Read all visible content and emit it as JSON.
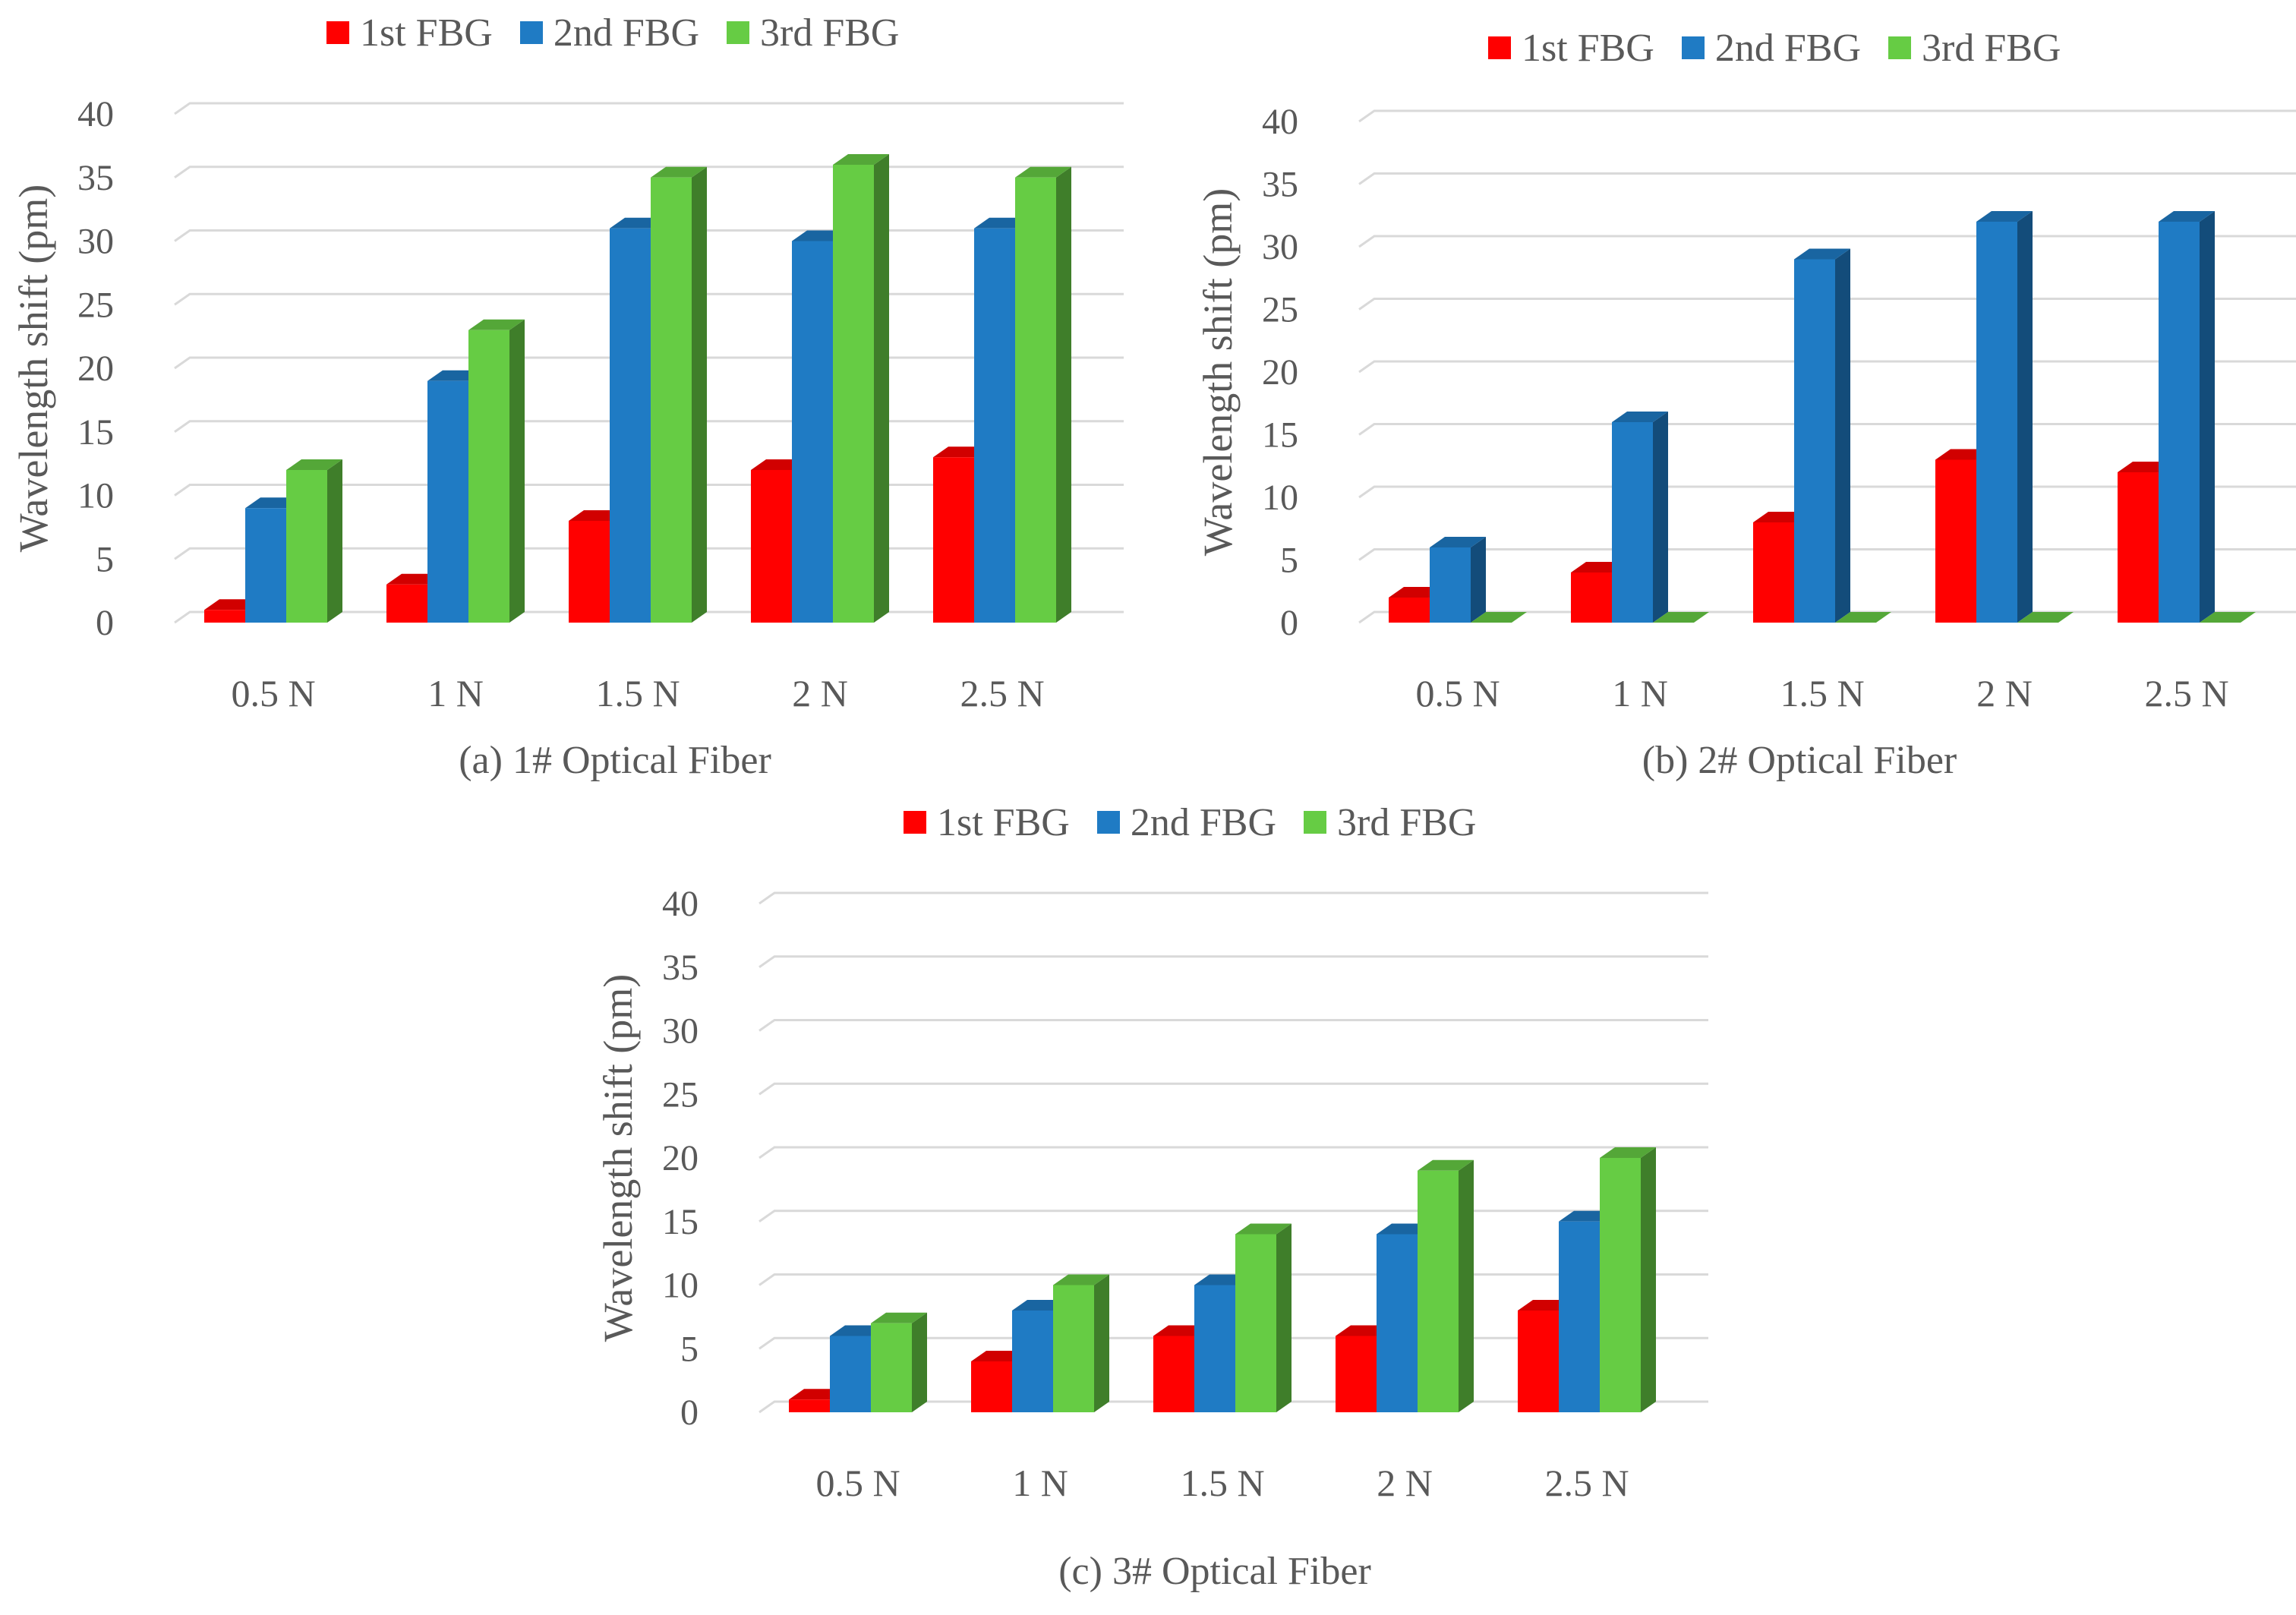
{
  "chart_data": [
    {
      "id": "a",
      "type": "bar",
      "style": "3d-clustered-column",
      "caption": "(a) 1# Optical Fiber",
      "ylabel": "Wavelength shift (pm)",
      "xlabel": "",
      "ylim": [
        0,
        40
      ],
      "yticks": [
        "0",
        "5",
        "10",
        "15",
        "20",
        "25",
        "30",
        "35",
        "40"
      ],
      "categories": [
        "0.5 N",
        "1 N",
        "1.5 N",
        "2 N",
        "2.5 N"
      ],
      "legend_position": "top",
      "series": [
        {
          "name": "1st FBG",
          "color": "#ff0000",
          "values": [
            1,
            3,
            8,
            12,
            13
          ]
        },
        {
          "name": "2nd FBG",
          "color": "#1f7bc4",
          "values": [
            9,
            19,
            31,
            30,
            31
          ]
        },
        {
          "name": "3rd FBG",
          "color": "#66cc44",
          "values": [
            12,
            23,
            35,
            36,
            35
          ]
        }
      ]
    },
    {
      "id": "b",
      "type": "bar",
      "style": "3d-clustered-column",
      "caption": "(b) 2# Optical Fiber",
      "ylabel": "Wavelength shift (pm)",
      "xlabel": "",
      "ylim": [
        0,
        40
      ],
      "yticks": [
        "0",
        "5",
        "10",
        "15",
        "20",
        "25",
        "30",
        "35",
        "40"
      ],
      "categories": [
        "0.5 N",
        "1 N",
        "1.5 N",
        "2 N",
        "2.5 N"
      ],
      "legend_position": "top",
      "series": [
        {
          "name": "1st FBG",
          "color": "#ff0000",
          "values": [
            2,
            4,
            8,
            13,
            12
          ]
        },
        {
          "name": "2nd FBG",
          "color": "#1f7bc4",
          "values": [
            6,
            16,
            29,
            32,
            32
          ]
        },
        {
          "name": "3rd FBG",
          "color": "#66cc44",
          "values": [
            0,
            0,
            0,
            0,
            0
          ]
        }
      ]
    },
    {
      "id": "c",
      "type": "bar",
      "style": "3d-clustered-column",
      "caption": "(c) 3# Optical Fiber",
      "ylabel": "Wavelength shift (pm)",
      "xlabel": "",
      "ylim": [
        0,
        40
      ],
      "yticks": [
        "0",
        "5",
        "10",
        "15",
        "20",
        "25",
        "30",
        "35",
        "40"
      ],
      "categories": [
        "0.5 N",
        "1 N",
        "1.5 N",
        "2 N",
        "2.5 N"
      ],
      "legend_position": "top",
      "series": [
        {
          "name": "1st FBG",
          "color": "#ff0000",
          "values": [
            1,
            4,
            6,
            6,
            8
          ]
        },
        {
          "name": "2nd FBG",
          "color": "#1f7bc4",
          "values": [
            6,
            8,
            10,
            14,
            15
          ]
        },
        {
          "name": "3rd FBG",
          "color": "#66cc44",
          "values": [
            7,
            10,
            14,
            19,
            20
          ]
        }
      ]
    }
  ]
}
